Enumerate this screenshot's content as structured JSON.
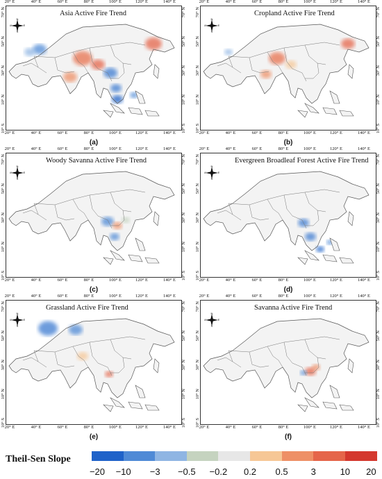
{
  "panels": [
    {
      "title": "Asia Active Fire Trend",
      "label": "(a)",
      "lon_ticks": [
        "20° E",
        "40° E",
        "60° E",
        "80° E",
        "100° E",
        "120° E",
        "140° E"
      ],
      "lat_ticks": [
        "70° N",
        "50° N",
        "30° N",
        "10° N",
        "10° S"
      ],
      "dominant_colors": [
        "#e8724f",
        "#3d7cd1"
      ]
    },
    {
      "title": "Cropland Active Fire Trend",
      "label": "(b)",
      "lon_ticks": [
        "20° E",
        "40° E",
        "60° E",
        "80° E",
        "100° E",
        "120° E",
        "140° E"
      ],
      "lat_ticks": [
        "70° N",
        "50° N",
        "30° N",
        "10° N",
        "10° S"
      ],
      "dominant_colors": [
        "#e8724f"
      ]
    },
    {
      "title": "Woody Savanna Active Fire Trend",
      "label": "(c)",
      "lon_ticks": [
        "20° E",
        "40° E",
        "60° E",
        "80° E",
        "100° E",
        "120° E",
        "140° E"
      ],
      "lat_ticks": [
        "70° N",
        "50° N",
        "30° N",
        "10° N",
        "10° S"
      ],
      "dominant_colors": [
        "#5b8fd6",
        "#e8724f"
      ]
    },
    {
      "title": "Evergreen Broadleaf Forest Active Fire Trend",
      "label": "(d)",
      "lon_ticks": [
        "20° E",
        "40° E",
        "60° E",
        "80° E",
        "100° E",
        "120° E",
        "140° E"
      ],
      "lat_ticks": [
        "70° N",
        "50° N",
        "30° N",
        "10° N",
        "10° S"
      ],
      "dominant_colors": [
        "#3d7cd1"
      ]
    },
    {
      "title": "Grassland Active Fire Trend",
      "label": "(e)",
      "lon_ticks": [
        "20° E",
        "40° E",
        "60° E",
        "80° E",
        "100° E",
        "120° E",
        "140° E"
      ],
      "lat_ticks": [
        "70° N",
        "50° N",
        "30° N",
        "10° N",
        "10° S"
      ],
      "dominant_colors": [
        "#3d7cd1",
        "#e8724f"
      ]
    },
    {
      "title": "Savanna Active Fire Trend",
      "label": "(f)",
      "lon_ticks": [
        "20° E",
        "40° E",
        "60° E",
        "80° E",
        "100° E",
        "120° E",
        "140° E"
      ],
      "lat_ticks": [
        "70° N",
        "50° N",
        "30° N",
        "10° N",
        "10° S"
      ],
      "dominant_colors": [
        "#e8724f"
      ]
    }
  ],
  "compass": {
    "n": "N",
    "s": "S",
    "e": "E",
    "w": "W"
  },
  "legend": {
    "title": "Theil-Sen Slope",
    "colors": [
      "#1f62c9",
      "#4f8ad6",
      "#8fb5e3",
      "#c5d3bf",
      "#e7e7e7",
      "#f6c796",
      "#ee9066",
      "#e5654a",
      "#d4382e"
    ],
    "labels": [
      "−20",
      "−10",
      "−3",
      "−0.5",
      "−0.2",
      "0.2",
      "0.5",
      "3",
      "10",
      "20"
    ]
  }
}
